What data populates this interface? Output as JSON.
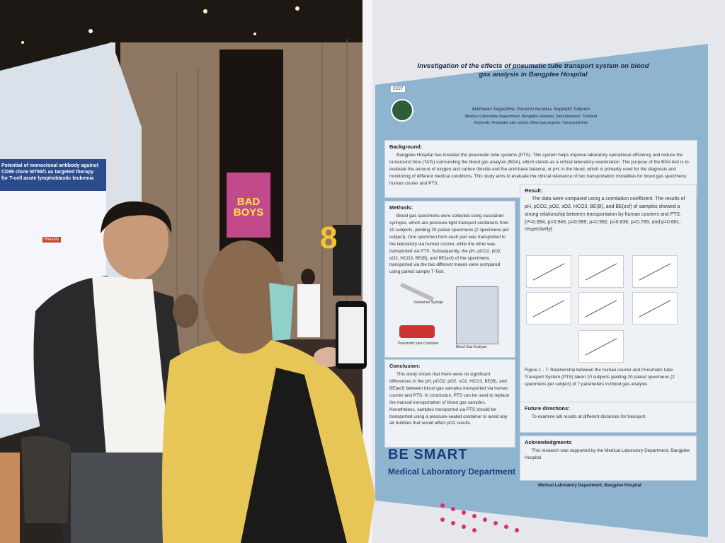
{
  "poster": {
    "code": "C227",
    "title": "Investigation of the effects of pneumatic tube transport system on blood gas analysis in Bangplee Hospital",
    "authors": "Mathuwan Nagasthiva, Porramin Naradua, Noppadol Tubprem",
    "affiliation": "Medical Laboratory Department, Bangplee Hospital, Samutprakarn, Thailand",
    "keywords": "Keywords: Pneumatic tube system, Blood gas analysis, Turnaround time",
    "background": {
      "heading": "Background:",
      "body": "Bangplee Hospital has installed the pneumatic tube systems (PTS). This system helps improve laboratory operational efficiency and reduce the turnaround time (TATs) surrounding the blood gas analysis (BGA), which stands as a critical laboratory examination. The purpose of the BGA test is to evaluate the amount of oxygen and carbon dioxide and the acid-base balance, or pH, in the blood, which is primarily used for the diagnosis and monitoring of different medical conditions. This study aims to evaluate the clinical relevance of two transportation modalities for blood gas specimens: human courier and PTS."
    },
    "methods": {
      "heading": "Methods:",
      "body": "Blood gas specimens were collected using vacutainer syringes, which are pressure-tight transport containers from 10 subjects, yielding 20 paired specimens (2 specimens per subject). One specimen from each pair was transported to the laboratory via human courier, while the other was transported via PTS. Subsequently, the pH, pCO2, pO2, sO2, HCO3, BE(B), and BE(ecf) of the specimens transported via the two different means were compared using paired sample T-Test.",
      "label_syringe": "Vacutainer Syringe",
      "label_container": "Pneumatic tube Container",
      "label_analyzer": "Blood Gas Analyzer"
    },
    "result": {
      "heading": "Result:",
      "body": "The data were compared using a correlation coefficient. The results of pH, pCO2, pO2, sO2, HCO3, BE(B), and BE(ecf) of samples showed a strong relationship between transportation by human couriers and PTS. (r²=0.994, p=0.949, p=0.999, p=0.992, p=0.836, p=0.789, and p=0.681, respectively)",
      "caption": "Figure 1 - 7: Relationship between the human courier and Pneumatic tube Transport System (PTS) taken 10 subjects yielding 20 paired specimens (2 specimens per subject) of 7 parameters in blood gas analysis."
    },
    "conclusion": {
      "heading": "Conclusion:",
      "body": "This study shows that there were no significant differences in the pH, pCO2, pO2, sO2, HCO3, BE(B), and BE(ecf) between blood gas samples transported via human courier and PTS. In conclusion, PTS can be used to replace the manual transportation of blood gas samples. Nonetheless, samples transported via PTS should be transported using a pressure-sealed container to avoid any air bubbles that would affect pO2 results."
    },
    "future": {
      "heading": "Future directions:",
      "body": "To examine lab results at different distances for transport."
    },
    "acknowledgments": {
      "heading": "Acknowledgments",
      "body": "This research was supported by the Medical Laboratory Department, Bangplee Hospital"
    },
    "brand": "BE SMART",
    "brand_sub": "Medical Laboratory Department",
    "footer": "Medical Laboratory Department, Bangplee Hospital"
  },
  "left_poster": {
    "title": "Potential of monoclonal antibody against CD99 clone MT99/1 as targeted therapy for T-cell acute lymphoblastic leukemia",
    "section": "Results"
  },
  "movie_poster": {
    "title": "BAD BOYS"
  },
  "booth_number": "8"
}
